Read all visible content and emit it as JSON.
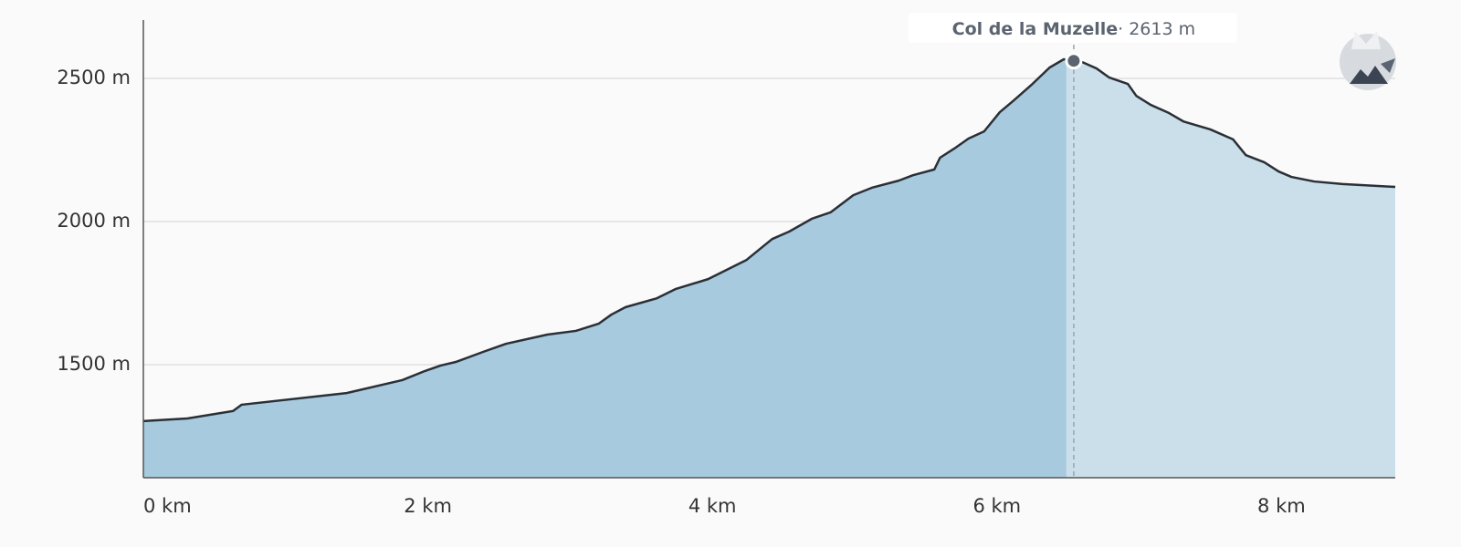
{
  "chart_data": {
    "type": "area",
    "x": [
      0,
      0.31,
      0.63,
      0.69,
      1.43,
      1.82,
      1.98,
      2.09,
      2.2,
      2.39,
      2.55,
      2.84,
      3.04,
      3.2,
      3.29,
      3.39,
      3.61,
      3.74,
      3.97,
      4.24,
      4.42,
      4.54,
      4.7,
      4.83,
      4.99,
      5.12,
      5.31,
      5.41,
      5.56,
      5.6,
      5.7,
      5.8,
      5.91,
      6.02,
      6.12,
      6.25,
      6.37,
      6.47,
      6.6,
      6.7,
      6.79,
      6.92,
      6.98,
      7.08,
      7.21,
      7.31,
      7.5,
      7.66,
      7.75,
      7.88,
      7.98,
      8.07,
      8.23,
      8.43,
      8.8
    ],
    "values": [
      1303,
      1312,
      1338,
      1360,
      1401,
      1446,
      1478,
      1497,
      1510,
      1545,
      1573,
      1605,
      1618,
      1643,
      1675,
      1701,
      1732,
      1764,
      1799,
      1866,
      1939,
      1965,
      2010,
      2032,
      2092,
      2118,
      2143,
      2162,
      2182,
      2223,
      2255,
      2290,
      2315,
      2382,
      2424,
      2481,
      2538,
      2567,
      2557,
      2535,
      2503,
      2481,
      2439,
      2408,
      2379,
      2350,
      2322,
      2287,
      2232,
      2207,
      2175,
      2156,
      2140,
      2131,
      2121
    ],
    "color": "#2b2f36",
    "fill": "#a7cade",
    "fill_after": "#cadfea",
    "xlim": [
      0,
      8.8
    ],
    "ylim": [
      1105,
      2704
    ],
    "xticks": [
      {
        "value": 0,
        "label": "0 km"
      },
      {
        "value": 2,
        "label": "2 km"
      },
      {
        "value": 4,
        "label": "4 km"
      },
      {
        "value": 6,
        "label": "6 km"
      },
      {
        "value": 8,
        "label": "8 km"
      }
    ],
    "yticks": [
      {
        "value": 1500,
        "label": "1500 m"
      },
      {
        "value": 2000,
        "label": "2000 m"
      },
      {
        "value": 2500,
        "label": "2500 m"
      }
    ],
    "grid": true,
    "annotation": {
      "title": "Col de la Muzelle",
      "text": "· 2613 m",
      "x": 6.54
    }
  }
}
